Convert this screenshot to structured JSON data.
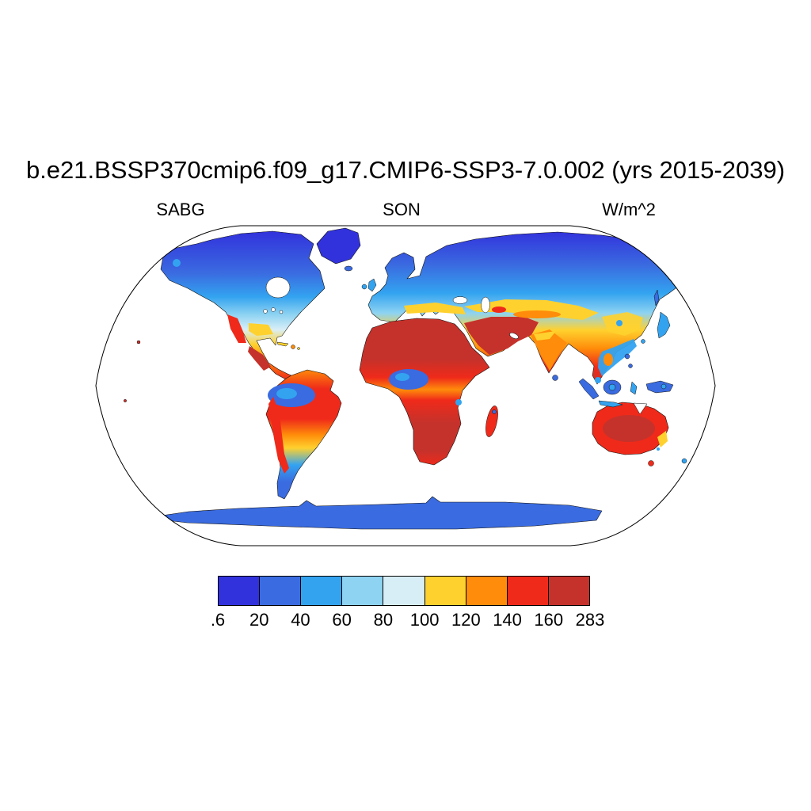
{
  "title": "b.e21.BSSP370cmip6.f09_g17.CMIP6-SSP3-7.0.002 (yrs 2015-2039)",
  "labels": {
    "variable": "SABG",
    "season": "SON",
    "units": "W/m^2"
  },
  "chart_data": {
    "type": "heatmap",
    "title": "b.e21.BSSP370cmip6.f09_g17.CMIP6-SSP3-7.0.002 (yrs 2015-2039)",
    "variable": "SABG",
    "season": "SON",
    "units": "W/m^2",
    "projection": "Robinson world map, filled contours over land only, white ocean",
    "colorbar_levels": [
      ".6",
      "20",
      "40",
      "60",
      "80",
      "100",
      "120",
      "140",
      "160",
      "283"
    ],
    "colorbar_colors": [
      "#3232DC",
      "#3A6BE0",
      "#33A3F0",
      "#8ED3F2",
      "#D8EEF7",
      "#FFD12E",
      "#FF8C0A",
      "#EF2A1A",
      "#C5322B"
    ],
    "value_range": [
      0.6,
      283
    ],
    "regional_values": {
      "greenland_arctic_islands": "0.6-20",
      "northern_canada_siberia": "0.6-40",
      "mid_latitude_north_america_eurasia": "40-80",
      "central_asia_mediterranean": "100-140",
      "sahara_arabia_middle_east": "160-283",
      "india": "100-140",
      "southeast_asia_indonesia": "20-60",
      "amazon_basin": "20-40",
      "congo_basin": "20-40",
      "andes_west_coast_south_america": "140-283",
      "southern_africa": "140-283",
      "australia_interior": "160-283",
      "patagonia_new_zealand": "40-80",
      "antarctica": "20-40"
    }
  }
}
